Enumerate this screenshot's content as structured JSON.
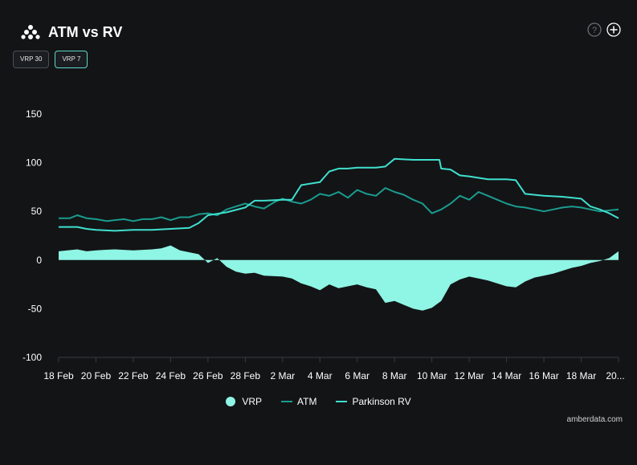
{
  "header": {
    "title": "ATM vs RV"
  },
  "toggles": [
    {
      "label": "VRP 30",
      "active": false
    },
    {
      "label": "VRP 7",
      "active": true
    }
  ],
  "credit": "amberdata.com",
  "colors": {
    "vrp": "#8ff5e4",
    "atm": "#1a9c8f",
    "rv": "#3fe0cf",
    "bg": "#131416",
    "axis": "#3a3d42"
  },
  "legend": [
    {
      "label": "VRP",
      "shape": "dot",
      "color_key": "vrp"
    },
    {
      "label": "ATM",
      "shape": "line",
      "color_key": "atm"
    },
    {
      "label": "Parkinson RV",
      "shape": "line",
      "color_key": "rv"
    }
  ],
  "chart_data": {
    "type": "line",
    "title": "ATM vs RV",
    "x_tick_labels": [
      "18 Feb",
      "20 Feb",
      "22 Feb",
      "24 Feb",
      "26 Feb",
      "28 Feb",
      "2 Mar",
      "4 Mar",
      "6 Mar",
      "8 Mar",
      "10 Mar",
      "12 Mar",
      "14 Mar",
      "16 Mar",
      "18 Mar",
      "20..."
    ],
    "x_range_days": [
      0,
      30
    ],
    "y_ticks": [
      150,
      100,
      50,
      0,
      -50,
      -100
    ],
    "ylim": [
      -100,
      150
    ],
    "grid": false,
    "legend_position": "bottom",
    "series": [
      {
        "name": "ATM",
        "kind": "line",
        "color_key": "atm",
        "points": [
          [
            0,
            43
          ],
          [
            0.6,
            43
          ],
          [
            1,
            46
          ],
          [
            1.5,
            43
          ],
          [
            2,
            42
          ],
          [
            2.6,
            40
          ],
          [
            3,
            41
          ],
          [
            3.5,
            42
          ],
          [
            4,
            40
          ],
          [
            4.5,
            42
          ],
          [
            5,
            42
          ],
          [
            5.5,
            44
          ],
          [
            6,
            41
          ],
          [
            6.5,
            44
          ],
          [
            7,
            44
          ],
          [
            7.5,
            47
          ],
          [
            8,
            48
          ],
          [
            8.5,
            46
          ],
          [
            9,
            52
          ],
          [
            9.5,
            55
          ],
          [
            10,
            58
          ],
          [
            10.5,
            55
          ],
          [
            11,
            53
          ],
          [
            11.6,
            60
          ],
          [
            12,
            63
          ],
          [
            12.5,
            60
          ],
          [
            13,
            58
          ],
          [
            13.5,
            62
          ],
          [
            14,
            68
          ],
          [
            14.5,
            66
          ],
          [
            15,
            70
          ],
          [
            15.5,
            64
          ],
          [
            16,
            72
          ],
          [
            16.5,
            68
          ],
          [
            17,
            66
          ],
          [
            17.5,
            74
          ],
          [
            18,
            70
          ],
          [
            18.5,
            67
          ],
          [
            19,
            62
          ],
          [
            19.5,
            58
          ],
          [
            20,
            48
          ],
          [
            20.5,
            52
          ],
          [
            21,
            58
          ],
          [
            21.5,
            66
          ],
          [
            22,
            62
          ],
          [
            22.5,
            70
          ],
          [
            23,
            66
          ],
          [
            23.5,
            62
          ],
          [
            24,
            58
          ],
          [
            24.5,
            55
          ],
          [
            25,
            54
          ],
          [
            25.5,
            52
          ],
          [
            26,
            50
          ],
          [
            26.5,
            52
          ],
          [
            27,
            54
          ],
          [
            27.5,
            55
          ],
          [
            28,
            54
          ],
          [
            28.5,
            52
          ],
          [
            29,
            50
          ],
          [
            29.5,
            51
          ],
          [
            30,
            52
          ]
        ]
      },
      {
        "name": "Parkinson RV",
        "kind": "line",
        "color_key": "rv",
        "points": [
          [
            0,
            34
          ],
          [
            1,
            34
          ],
          [
            1.5,
            32
          ],
          [
            2,
            31
          ],
          [
            3,
            30
          ],
          [
            4,
            31
          ],
          [
            5,
            31
          ],
          [
            6,
            32
          ],
          [
            7,
            33
          ],
          [
            7.5,
            38
          ],
          [
            8,
            46
          ],
          [
            9,
            49
          ],
          [
            10,
            54
          ],
          [
            10.5,
            61
          ],
          [
            11,
            61
          ],
          [
            12,
            62
          ],
          [
            12.5,
            62
          ],
          [
            13,
            77
          ],
          [
            14,
            80
          ],
          [
            14.5,
            91
          ],
          [
            15,
            94
          ],
          [
            15.5,
            94
          ],
          [
            16,
            95
          ],
          [
            17,
            95
          ],
          [
            17.5,
            96
          ],
          [
            18,
            104
          ],
          [
            19,
            103
          ],
          [
            20,
            103
          ],
          [
            20.4,
            103
          ],
          [
            20.5,
            94
          ],
          [
            21,
            93
          ],
          [
            21.5,
            87
          ],
          [
            22,
            86
          ],
          [
            23,
            83
          ],
          [
            24,
            83
          ],
          [
            24.5,
            82
          ],
          [
            25,
            68
          ],
          [
            26,
            66
          ],
          [
            27,
            65
          ],
          [
            28,
            63
          ],
          [
            28.5,
            55
          ],
          [
            29,
            52
          ],
          [
            29.5,
            48
          ],
          [
            30,
            43
          ]
        ]
      },
      {
        "name": "VRP",
        "kind": "area",
        "color_key": "vrp",
        "points": [
          [
            0,
            9
          ],
          [
            1,
            11
          ],
          [
            1.5,
            9
          ],
          [
            2,
            10
          ],
          [
            3,
            11
          ],
          [
            4,
            10
          ],
          [
            5,
            11
          ],
          [
            5.5,
            12
          ],
          [
            6,
            15
          ],
          [
            6.5,
            10
          ],
          [
            7,
            8
          ],
          [
            7.5,
            6
          ],
          [
            8,
            -3
          ],
          [
            8.5,
            2
          ],
          [
            9,
            -7
          ],
          [
            9.5,
            -12
          ],
          [
            10,
            -14
          ],
          [
            10.5,
            -13
          ],
          [
            11,
            -16
          ],
          [
            12,
            -17
          ],
          [
            12.5,
            -19
          ],
          [
            13,
            -24
          ],
          [
            13.5,
            -27
          ],
          [
            14,
            -31
          ],
          [
            14.5,
            -25
          ],
          [
            15,
            -29
          ],
          [
            15.5,
            -27
          ],
          [
            16,
            -25
          ],
          [
            16.5,
            -28
          ],
          [
            17,
            -30
          ],
          [
            17.5,
            -44
          ],
          [
            18,
            -42
          ],
          [
            18.5,
            -46
          ],
          [
            19,
            -50
          ],
          [
            19.5,
            -52
          ],
          [
            20,
            -49
          ],
          [
            20.5,
            -42
          ],
          [
            21,
            -25
          ],
          [
            21.5,
            -20
          ],
          [
            22,
            -17
          ],
          [
            22.5,
            -19
          ],
          [
            23,
            -21
          ],
          [
            23.5,
            -24
          ],
          [
            24,
            -27
          ],
          [
            24.5,
            -28
          ],
          [
            25,
            -22
          ],
          [
            25.5,
            -18
          ],
          [
            26,
            -16
          ],
          [
            26.5,
            -14
          ],
          [
            27,
            -11
          ],
          [
            27.5,
            -8
          ],
          [
            28,
            -6
          ],
          [
            28.5,
            -3
          ],
          [
            29,
            -1
          ],
          [
            29.5,
            2
          ],
          [
            30,
            9
          ]
        ]
      }
    ]
  }
}
